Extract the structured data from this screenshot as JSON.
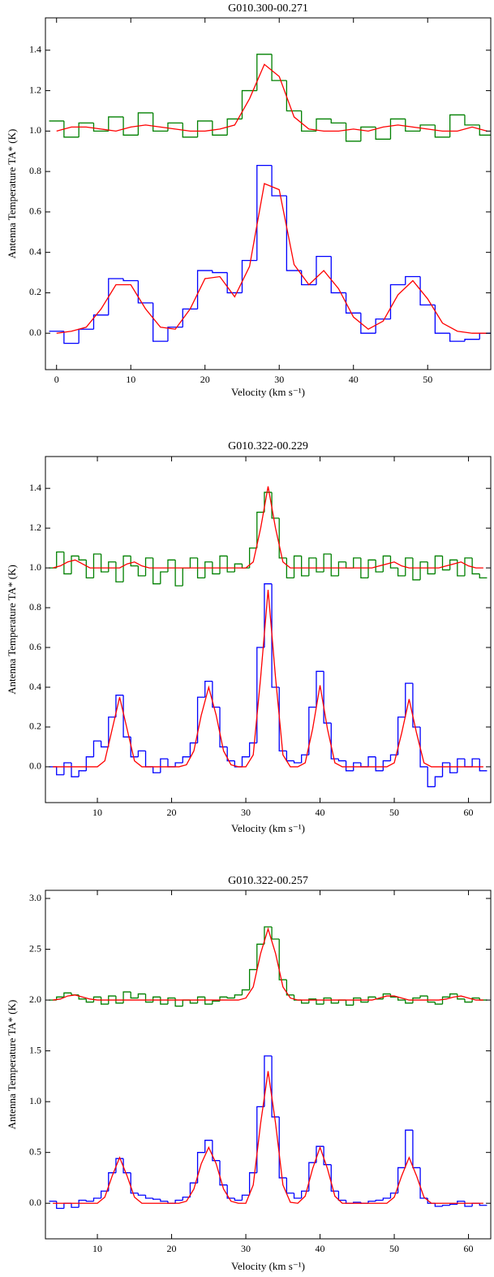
{
  "chart_data": [
    {
      "type": "step-spectrum",
      "title": "G010.300-00.271",
      "x_label": "Velocity (km s⁻¹)",
      "y_label": "Antenna Temperature TA* (K)",
      "x": [
        0,
        2,
        4,
        6,
        8,
        10,
        12,
        14,
        16,
        18,
        20,
        22,
        24,
        26,
        28,
        30,
        32,
        34,
        36,
        38,
        40,
        42,
        44,
        46,
        48,
        50,
        52,
        54,
        56,
        58
      ],
      "xlim": [
        -1.5,
        58.5
      ],
      "xticks": [
        0,
        10,
        20,
        30,
        40,
        50
      ],
      "ylim": [
        -0.18,
        1.56
      ],
      "yticks": [
        {
          "value": 0,
          "label": "0.0"
        },
        0.2,
        0.4,
        0.6,
        0.8,
        {
          "value": 1,
          "label": "1.0"
        },
        1.2,
        1.4
      ],
      "series": [
        {
          "color": "#008000",
          "drawstyle": "steps",
          "values": [
            1.05,
            0.97,
            1.04,
            1.0,
            1.07,
            0.98,
            1.09,
            1.0,
            1.04,
            0.97,
            1.05,
            0.98,
            1.06,
            1.2,
            1.38,
            1.25,
            1.1,
            1.0,
            1.06,
            1.04,
            0.95,
            1.02,
            0.96,
            1.06,
            1.0,
            1.03,
            0.97,
            1.08,
            1.03,
            0.98
          ]
        },
        {
          "color": "#ff0000",
          "drawstyle": "line",
          "values": [
            1.0,
            1.02,
            1.02,
            1.01,
            1.0,
            1.02,
            1.03,
            1.02,
            1.01,
            1.0,
            1.0,
            1.01,
            1.03,
            1.16,
            1.33,
            1.27,
            1.07,
            1.01,
            1.0,
            1.0,
            1.01,
            1.0,
            1.02,
            1.03,
            1.02,
            1.01,
            1.0,
            1.0,
            1.02,
            1.0
          ]
        },
        {
          "color": "#0000ff",
          "drawstyle": "steps",
          "values": [
            0.01,
            -0.05,
            0.02,
            0.09,
            0.27,
            0.26,
            0.15,
            -0.04,
            0.03,
            0.12,
            0.31,
            0.3,
            0.2,
            0.36,
            0.83,
            0.68,
            0.31,
            0.24,
            0.38,
            0.2,
            0.1,
            0.0,
            0.07,
            0.24,
            0.28,
            0.14,
            0.0,
            -0.04,
            -0.03,
            0.0
          ]
        },
        {
          "color": "#ff0000",
          "drawstyle": "line",
          "values": [
            0.0,
            0.01,
            0.03,
            0.12,
            0.24,
            0.24,
            0.12,
            0.03,
            0.02,
            0.12,
            0.27,
            0.28,
            0.18,
            0.33,
            0.74,
            0.71,
            0.34,
            0.24,
            0.31,
            0.22,
            0.08,
            0.02,
            0.06,
            0.19,
            0.26,
            0.17,
            0.05,
            0.01,
            0.0,
            0.0
          ]
        }
      ]
    },
    {
      "type": "step-spectrum",
      "title": "G010.322-00.229",
      "x_label": "Velocity (km s⁻¹)",
      "y_label": "Antenna Temperature TA* (K)",
      "x": [
        4,
        5,
        6,
        7,
        8,
        9,
        10,
        11,
        12,
        13,
        14,
        15,
        16,
        17,
        18,
        19,
        20,
        21,
        22,
        23,
        24,
        25,
        26,
        27,
        28,
        29,
        30,
        31,
        32,
        33,
        34,
        35,
        36,
        37,
        38,
        39,
        40,
        41,
        42,
        43,
        44,
        45,
        46,
        47,
        48,
        49,
        50,
        51,
        52,
        53,
        54,
        55,
        56,
        57,
        58,
        59,
        60,
        61,
        62
      ],
      "xlim": [
        3,
        63
      ],
      "xticks": [
        10,
        20,
        30,
        40,
        50,
        60
      ],
      "ylim": [
        -0.18,
        1.56
      ],
      "yticks": [
        {
          "value": 0,
          "label": "0.0"
        },
        0.2,
        0.4,
        0.6,
        0.8,
        {
          "value": 1,
          "label": "1.0"
        },
        1.2,
        1.4
      ],
      "series": [
        {
          "color": "#008000",
          "drawstyle": "steps",
          "values": [
            1.0,
            1.08,
            0.97,
            1.06,
            1.04,
            0.95,
            1.07,
            0.98,
            1.03,
            0.93,
            1.06,
            1.01,
            0.96,
            1.05,
            0.92,
            0.98,
            1.04,
            0.91,
            1.0,
            1.05,
            0.95,
            1.03,
            0.97,
            1.06,
            0.98,
            1.02,
            1.0,
            1.1,
            1.28,
            1.38,
            1.25,
            1.05,
            0.95,
            1.06,
            0.96,
            1.05,
            0.98,
            1.07,
            0.96,
            1.03,
            1.0,
            1.05,
            0.95,
            1.04,
            0.98,
            1.06,
            1.0,
            0.96,
            1.05,
            0.94,
            1.03,
            0.97,
            1.06,
            0.99,
            1.04,
            0.96,
            1.05,
            0.97,
            0.95
          ]
        },
        {
          "color": "#ff0000",
          "drawstyle": "line",
          "values": [
            1.0,
            1.01,
            1.03,
            1.04,
            1.02,
            1.0,
            1.0,
            1.0,
            1.0,
            1.0,
            1.02,
            1.03,
            1.01,
            1.0,
            1.0,
            1.0,
            1.0,
            1.0,
            1.0,
            1.0,
            1.0,
            1.0,
            1.0,
            1.0,
            1.0,
            1.0,
            1.0,
            1.03,
            1.2,
            1.41,
            1.2,
            1.03,
            1.0,
            1.0,
            1.0,
            1.0,
            1.0,
            1.0,
            1.0,
            1.0,
            1.0,
            1.0,
            1.0,
            1.0,
            1.01,
            1.02,
            1.03,
            1.01,
            1.0,
            1.0,
            1.0,
            1.0,
            1.0,
            1.01,
            1.02,
            1.03,
            1.01,
            1.0,
            1.0
          ]
        },
        {
          "color": "#0000ff",
          "drawstyle": "steps",
          "values": [
            0.0,
            -0.04,
            0.02,
            -0.05,
            -0.02,
            0.05,
            0.13,
            0.1,
            0.25,
            0.36,
            0.15,
            0.05,
            0.08,
            0.0,
            -0.03,
            0.04,
            0.0,
            0.02,
            0.05,
            0.12,
            0.35,
            0.43,
            0.3,
            0.1,
            0.03,
            0.0,
            0.05,
            0.12,
            0.6,
            0.92,
            0.4,
            0.08,
            0.03,
            0.02,
            0.06,
            0.3,
            0.48,
            0.22,
            0.04,
            0.03,
            -0.02,
            0.02,
            0.0,
            0.05,
            -0.02,
            0.03,
            0.06,
            0.25,
            0.42,
            0.2,
            0.0,
            -0.1,
            -0.05,
            0.02,
            -0.03,
            0.04,
            0.0,
            0.04,
            -0.02
          ]
        },
        {
          "color": "#ff0000",
          "drawstyle": "line",
          "values": [
            0,
            0,
            0,
            0,
            0,
            0,
            0,
            0.03,
            0.19,
            0.35,
            0.19,
            0.03,
            0,
            0,
            0,
            0,
            0,
            0,
            0.01,
            0.08,
            0.26,
            0.4,
            0.26,
            0.08,
            0.01,
            0,
            0,
            0.06,
            0.45,
            0.89,
            0.45,
            0.06,
            0,
            0,
            0.02,
            0.19,
            0.41,
            0.19,
            0.02,
            0,
            0,
            0,
            0,
            0,
            0,
            0,
            0.02,
            0.17,
            0.34,
            0.17,
            0.02,
            0,
            0,
            0,
            0,
            0,
            0,
            0,
            0
          ]
        }
      ]
    },
    {
      "type": "step-spectrum",
      "title": "G010.322-00.257",
      "x_label": "Velocity (km s⁻¹)",
      "y_label": "Antenna Temperature TA* (K)",
      "x": [
        4,
        5,
        6,
        7,
        8,
        9,
        10,
        11,
        12,
        13,
        14,
        15,
        16,
        17,
        18,
        19,
        20,
        21,
        22,
        23,
        24,
        25,
        26,
        27,
        28,
        29,
        30,
        31,
        32,
        33,
        34,
        35,
        36,
        37,
        38,
        39,
        40,
        41,
        42,
        43,
        44,
        45,
        46,
        47,
        48,
        49,
        50,
        51,
        52,
        53,
        54,
        55,
        56,
        57,
        58,
        59,
        60,
        61,
        62
      ],
      "xlim": [
        3,
        63
      ],
      "xticks": [
        10,
        20,
        30,
        40,
        50,
        60
      ],
      "ylim": [
        -0.35,
        3.08
      ],
      "yticks": [
        {
          "value": 0,
          "label": "0.0"
        },
        0.5,
        {
          "value": 1,
          "label": "1.0"
        },
        1.5,
        {
          "value": 2,
          "label": "2.0"
        },
        2.5,
        {
          "value": 3,
          "label": "3.0"
        }
      ],
      "series": [
        {
          "color": "#008000",
          "drawstyle": "steps",
          "values": [
            2.0,
            2.03,
            2.07,
            2.05,
            2.01,
            1.98,
            2.03,
            1.96,
            2.04,
            1.97,
            2.08,
            2.02,
            2.06,
            1.98,
            2.03,
            1.96,
            2.02,
            1.94,
            2.0,
            1.97,
            2.03,
            1.96,
            1.99,
            2.03,
            2.02,
            2.05,
            2.1,
            2.3,
            2.55,
            2.72,
            2.6,
            2.2,
            2.05,
            2.0,
            1.97,
            2.01,
            1.96,
            2.02,
            1.97,
            2.0,
            1.95,
            2.02,
            1.98,
            2.03,
            2.01,
            2.06,
            2.03,
            2.0,
            1.97,
            2.02,
            2.04,
            1.98,
            1.96,
            2.03,
            2.06,
            2.01,
            1.98,
            2.02,
            2.0
          ]
        },
        {
          "color": "#ff0000",
          "drawstyle": "line",
          "values": [
            2.0,
            2.01,
            2.04,
            2.05,
            2.03,
            2.01,
            2.0,
            2.0,
            2.0,
            2.0,
            2.0,
            2.0,
            2.0,
            2.0,
            2.0,
            2.0,
            2.0,
            2.0,
            2.0,
            2.0,
            2.0,
            2.0,
            2.0,
            2.0,
            2.0,
            2.0,
            2.02,
            2.13,
            2.46,
            2.7,
            2.46,
            2.13,
            2.02,
            2.0,
            2.0,
            2.0,
            2.0,
            2.0,
            2.0,
            2.0,
            2.0,
            2.0,
            2.0,
            2.0,
            2.02,
            2.04,
            2.04,
            2.02,
            2.0,
            2.0,
            2.0,
            2.0,
            2.0,
            2.01,
            2.03,
            2.04,
            2.02,
            2.0,
            2.0
          ]
        },
        {
          "color": "#0000ff",
          "drawstyle": "steps",
          "values": [
            0.02,
            -0.05,
            0.0,
            -0.04,
            0.03,
            0.02,
            0.05,
            0.12,
            0.3,
            0.44,
            0.3,
            0.1,
            0.08,
            0.05,
            0.04,
            0.02,
            0.0,
            0.03,
            0.06,
            0.2,
            0.5,
            0.62,
            0.42,
            0.18,
            0.05,
            0.03,
            0.08,
            0.3,
            0.95,
            1.45,
            0.85,
            0.25,
            0.1,
            0.05,
            0.12,
            0.4,
            0.56,
            0.38,
            0.12,
            0.03,
            0.0,
            0.01,
            0.0,
            0.02,
            0.03,
            0.05,
            0.1,
            0.35,
            0.72,
            0.35,
            0.05,
            0.0,
            -0.03,
            -0.02,
            -0.01,
            0.02,
            -0.03,
            0.0,
            -0.02
          ]
        },
        {
          "color": "#ff0000",
          "drawstyle": "line",
          "values": [
            0,
            0,
            0,
            0,
            0,
            0,
            0,
            0.06,
            0.27,
            0.45,
            0.27,
            0.06,
            0,
            0,
            0,
            0,
            0,
            0,
            0.02,
            0.14,
            0.39,
            0.55,
            0.39,
            0.14,
            0.02,
            0,
            0,
            0.18,
            0.79,
            1.3,
            0.79,
            0.18,
            0.01,
            0,
            0.07,
            0.34,
            0.55,
            0.34,
            0.07,
            0,
            0,
            0,
            0,
            0,
            0,
            0,
            0.06,
            0.27,
            0.45,
            0.27,
            0.06,
            0,
            0,
            0,
            0,
            0,
            0,
            0,
            0
          ]
        }
      ]
    }
  ]
}
